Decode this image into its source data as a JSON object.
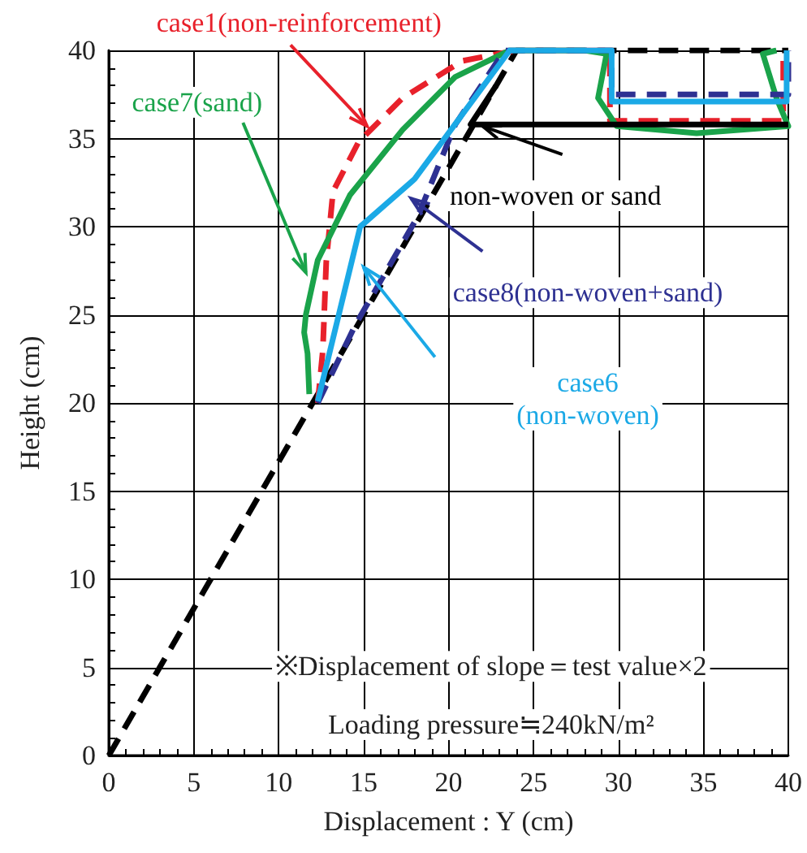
{
  "chart_data": {
    "type": "line",
    "xlabel": "Displacement : Y (cm)",
    "ylabel": "Height (cm)",
    "xlim": [
      0,
      40
    ],
    "ylim": [
      0,
      40
    ],
    "xticks": [
      0,
      5,
      10,
      15,
      20,
      25,
      30,
      35,
      40
    ],
    "yticks": [
      0,
      5,
      10,
      15,
      20,
      25,
      30,
      35,
      40
    ],
    "grid": true,
    "legend": "right",
    "marker": "none",
    "series": [
      {
        "color": "#000000",
        "line_style": "dashed",
        "x": [
          0,
          24,
          40
        ],
        "values": [
          0,
          40,
          40
        ]
      },
      {
        "name": "case1(non-reinforcement)",
        "color": "#e8212b",
        "line_style": "dashed",
        "x": [
          12.3,
          12.6,
          12.8,
          13.2,
          14.7,
          17.3,
          20.8,
          24,
          29.5,
          29.5,
          39.7,
          39.7
        ],
        "values": [
          20,
          23,
          28,
          32,
          34.8,
          37.3,
          39.4,
          40,
          40,
          36,
          36,
          40
        ]
      },
      {
        "name": "case7(sand)",
        "color": "#1aa34a",
        "line_style": "solid",
        "x": [
          11.8,
          11.7,
          11.5,
          11.6,
          12.3,
          14.2,
          17.3,
          20.4,
          23.6,
          28,
          29.3,
          28.8,
          29.9,
          34.6,
          40,
          39.3,
          38.5,
          39.3
        ],
        "values": [
          20.5,
          22.8,
          24,
          25,
          28.1,
          31.8,
          35.5,
          38.5,
          40,
          40,
          39.8,
          37.3,
          35.7,
          35.3,
          35.7,
          37.3,
          39.8,
          40
        ]
      },
      {
        "name": "non-woven or sand",
        "color": "#000000",
        "line_style": "solid",
        "x": [
          22.8,
          21.3,
          40
        ],
        "values": [
          38,
          35.8,
          35.8
        ]
      },
      {
        "name": "case8(non-woven+sand)",
        "color": "#2e3192",
        "line_style": "dashed",
        "x": [
          12.3,
          14.5,
          18.2,
          20.4,
          23.3,
          29.6,
          29.6,
          40,
          40
        ],
        "values": [
          20,
          24.4,
          30.6,
          35.8,
          40,
          40,
          37.5,
          37.5,
          40
        ]
      },
      {
        "name": "case6\n(non-woven)",
        "color": "#1ba9e6",
        "line_style": "solid",
        "x": [
          12.3,
          14.8,
          18,
          23.6,
          29.6,
          29.6,
          39.9,
          39.9
        ],
        "values": [
          20.1,
          30,
          32.7,
          40,
          40,
          37.1,
          37.1,
          40
        ]
      }
    ],
    "annotations": [
      "※Displacement of slope＝test value×2",
      "Loading pressure≒240kN/m²"
    ]
  }
}
